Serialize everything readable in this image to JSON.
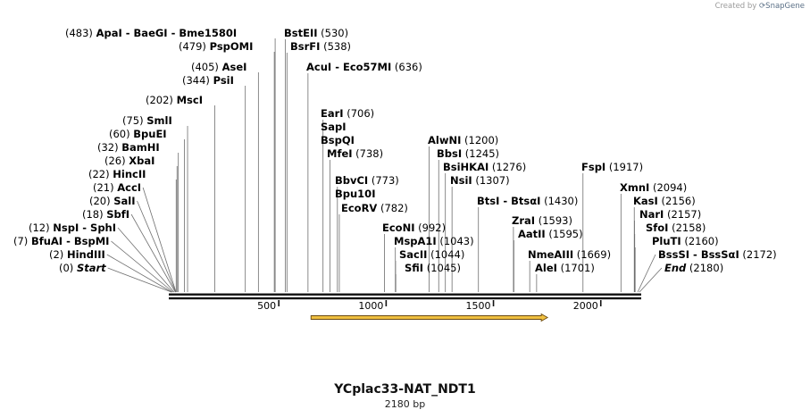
{
  "credit": {
    "prefix": "Created by",
    "brand": "SnapGene",
    "icon": "snapgene-logo-icon"
  },
  "plasmid": {
    "name": "YCplac33-NAT_NDT1",
    "length_label": "2180 bp",
    "length_bp": 2180
  },
  "scale": {
    "ticks": [
      {
        "value": 500,
        "label": "500"
      },
      {
        "value": 1000,
        "label": "1000"
      },
      {
        "value": 1500,
        "label": "1500"
      },
      {
        "value": 2000,
        "label": "2000"
      }
    ]
  },
  "features": [
    {
      "name": "orf-arrow",
      "start": 650,
      "end": 1752,
      "direction": "forward",
      "color": "#f0c040"
    }
  ],
  "sites": [
    {
      "enzymes": [
        "ApaI",
        "BaeGI",
        "Bme1580I"
      ],
      "pos": 483,
      "side": "left"
    },
    {
      "enzymes": [
        "BstEII"
      ],
      "pos": 530,
      "side": "right"
    },
    {
      "enzymes": [
        "PspOMI"
      ],
      "pos": 479,
      "side": "left"
    },
    {
      "enzymes": [
        "BsrFI"
      ],
      "pos": 538,
      "side": "right"
    },
    {
      "enzymes": [
        "AseI"
      ],
      "pos": 405,
      "side": "left"
    },
    {
      "enzymes": [
        "AcuI",
        "Eco57MI"
      ],
      "pos": 636,
      "side": "right"
    },
    {
      "enzymes": [
        "PsiI"
      ],
      "pos": 344,
      "side": "left"
    },
    {
      "enzymes": [
        "MscI"
      ],
      "pos": 202,
      "side": "left"
    },
    {
      "enzymes": [
        "EarI"
      ],
      "pos": 706,
      "side": "right"
    },
    {
      "enzymes": [
        "SmlI"
      ],
      "pos": 75,
      "side": "left"
    },
    {
      "enzymes": [
        "SapI"
      ],
      "pos": null,
      "side": "right"
    },
    {
      "enzymes": [
        "BpuEI"
      ],
      "pos": 60,
      "side": "left"
    },
    {
      "enzymes": [
        "BspQI"
      ],
      "pos": null,
      "side": "right"
    },
    {
      "enzymes": [
        "AlwNI"
      ],
      "pos": 1200,
      "side": "right"
    },
    {
      "enzymes": [
        "BamHI"
      ],
      "pos": 32,
      "side": "left"
    },
    {
      "enzymes": [
        "MfeI"
      ],
      "pos": 738,
      "side": "right"
    },
    {
      "enzymes": [
        "BbsI"
      ],
      "pos": 1245,
      "side": "right"
    },
    {
      "enzymes": [
        "XbaI"
      ],
      "pos": 26,
      "side": "left"
    },
    {
      "enzymes": [
        "BsiHKAI"
      ],
      "pos": 1276,
      "side": "right"
    },
    {
      "enzymes": [
        "FspI"
      ],
      "pos": 1917,
      "side": "right"
    },
    {
      "enzymes": [
        "HincII"
      ],
      "pos": 22,
      "side": "left"
    },
    {
      "enzymes": [
        "BbvCI"
      ],
      "pos": 773,
      "side": "right"
    },
    {
      "enzymes": [
        "NsiI"
      ],
      "pos": 1307,
      "side": "right"
    },
    {
      "enzymes": [
        "AccI"
      ],
      "pos": 21,
      "side": "left"
    },
    {
      "enzymes": [
        "Bpu10I"
      ],
      "pos": null,
      "side": "right"
    },
    {
      "enzymes": [
        "XmnI"
      ],
      "pos": 2094,
      "side": "right"
    },
    {
      "enzymes": [
        "SalI"
      ],
      "pos": 20,
      "side": "left"
    },
    {
      "enzymes": [
        "BtsI",
        "BtsαI"
      ],
      "pos": 1430,
      "side": "right"
    },
    {
      "enzymes": [
        "KasI"
      ],
      "pos": 2156,
      "side": "right"
    },
    {
      "enzymes": [
        "EcoRV"
      ],
      "pos": 782,
      "side": "right"
    },
    {
      "enzymes": [
        "SbfI"
      ],
      "pos": 18,
      "side": "left"
    },
    {
      "enzymes": [
        "NarI"
      ],
      "pos": 2157,
      "side": "right"
    },
    {
      "enzymes": [
        "ZraI"
      ],
      "pos": 1593,
      "side": "right"
    },
    {
      "enzymes": [
        "NspI",
        "SphI"
      ],
      "pos": 12,
      "side": "left"
    },
    {
      "enzymes": [
        "EcoNI"
      ],
      "pos": 992,
      "side": "right"
    },
    {
      "enzymes": [
        "SfoI"
      ],
      "pos": 2158,
      "side": "right"
    },
    {
      "enzymes": [
        "AatII"
      ],
      "pos": 1595,
      "side": "right"
    },
    {
      "enzymes": [
        "BfuAI",
        "BspMI"
      ],
      "pos": 7,
      "side": "left"
    },
    {
      "enzymes": [
        "MspA1I"
      ],
      "pos": 1043,
      "side": "right"
    },
    {
      "enzymes": [
        "PluTI"
      ],
      "pos": 2160,
      "side": "right"
    },
    {
      "enzymes": [
        "HindIII"
      ],
      "pos": 2,
      "side": "left"
    },
    {
      "enzymes": [
        "SacII"
      ],
      "pos": 1044,
      "side": "right"
    },
    {
      "enzymes": [
        "NmeAIII"
      ],
      "pos": 1669,
      "side": "right"
    },
    {
      "enzymes": [
        "BssSI",
        "BssSαI"
      ],
      "pos": 2172,
      "side": "right"
    },
    {
      "enzymes": [
        "Start"
      ],
      "pos": 0,
      "side": "left",
      "italic": true
    },
    {
      "enzymes": [
        "SfiI"
      ],
      "pos": 1045,
      "side": "right"
    },
    {
      "enzymes": [
        "AleI"
      ],
      "pos": 1701,
      "side": "right"
    },
    {
      "enzymes": [
        "End"
      ],
      "pos": 2180,
      "side": "right",
      "italic": true
    }
  ]
}
